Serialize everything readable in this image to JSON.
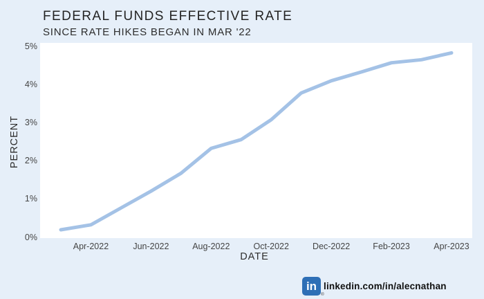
{
  "header": {
    "title": "FEDERAL FUNDS EFFECTIVE RATE",
    "subtitle": "SINCE RATE HIKES BEGAN IN MAR '22"
  },
  "chart_data": {
    "type": "line",
    "title": "FEDERAL FUNDS EFFECTIVE RATE",
    "subtitle": "SINCE RATE HIKES BEGAN IN MAR '22",
    "xlabel": "DATE",
    "ylabel": "PERCENT",
    "x": [
      "Mar-2022",
      "Apr-2022",
      "May-2022",
      "Jun-2022",
      "Jul-2022",
      "Aug-2022",
      "Sep-2022",
      "Oct-2022",
      "Nov-2022",
      "Dec-2022",
      "Jan-2023",
      "Feb-2023",
      "Mar-2023",
      "Apr-2023"
    ],
    "series": [
      {
        "name": "Federal Funds Effective Rate",
        "values": [
          0.2,
          0.33,
          0.77,
          1.21,
          1.68,
          2.33,
          2.56,
          3.08,
          3.78,
          4.1,
          4.33,
          4.57,
          4.65,
          4.83
        ]
      }
    ],
    "ylim": [
      0,
      5
    ],
    "y_tick_labels": [
      "0%",
      "1%",
      "2%",
      "3%",
      "4%",
      "5%"
    ],
    "x_tick_labels": [
      "Apr-2022",
      "Jun-2022",
      "Aug-2022",
      "Oct-2022",
      "Dec-2022",
      "Feb-2023",
      "Apr-2023"
    ],
    "x_tick_indices": [
      1,
      3,
      5,
      7,
      9,
      11,
      13
    ],
    "grid": false,
    "legend": "none",
    "line_color": "#a4c2e6",
    "plot_background": "#ffffff",
    "page_background": "#e6eff9"
  },
  "footer": {
    "logo_icon": "linkedin-icon",
    "logo_text": "in",
    "registered_mark": "®",
    "handle": "linkedin.com/in/alecnathan",
    "brand_color": "#2e6fb6"
  }
}
